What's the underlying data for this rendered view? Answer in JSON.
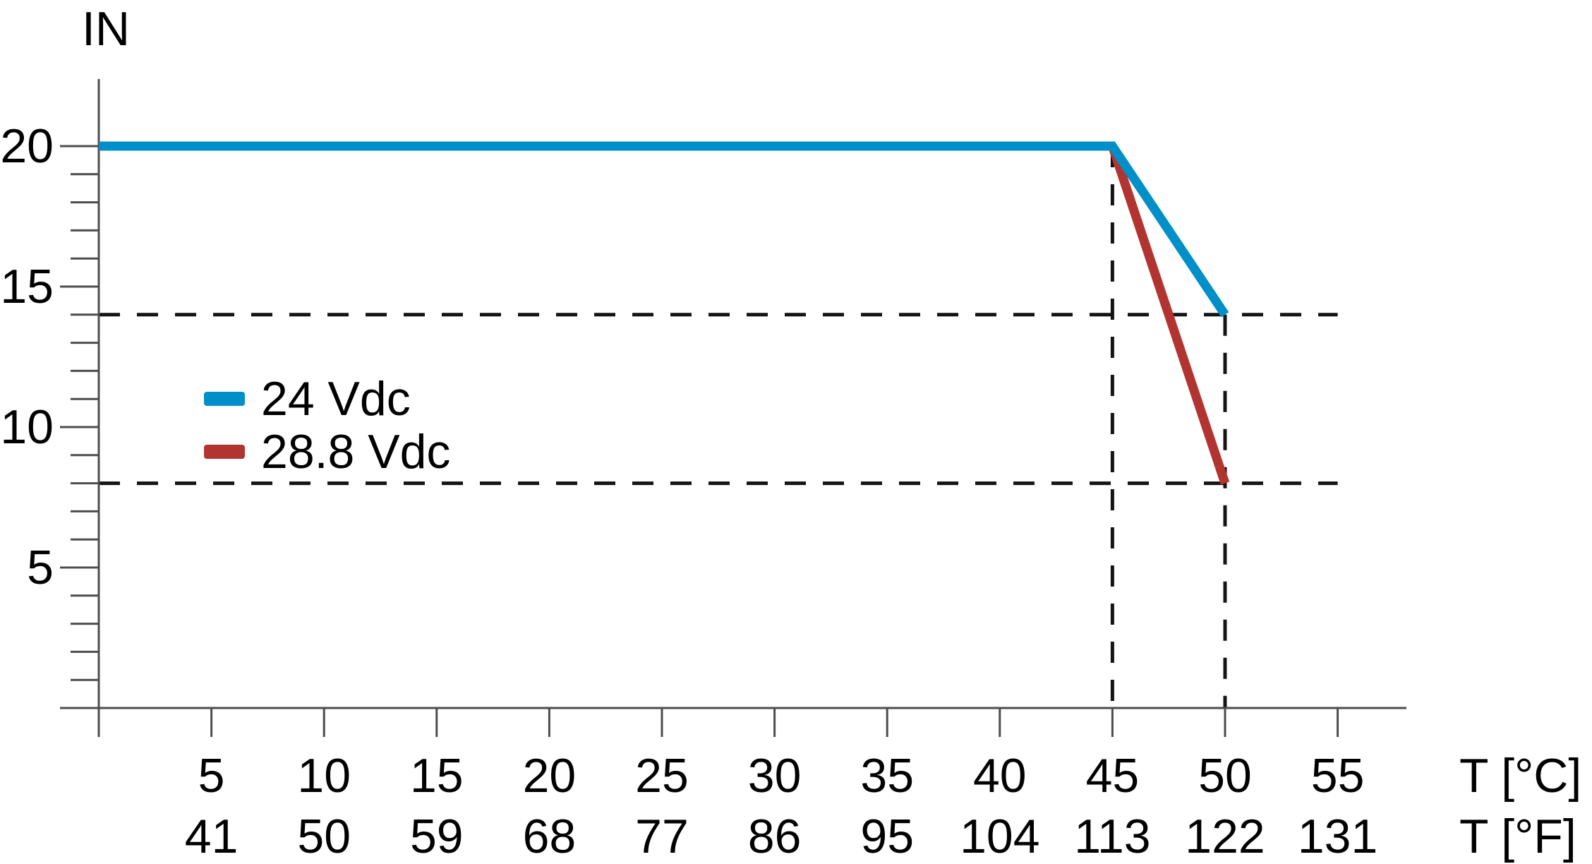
{
  "chart_data": {
    "type": "line",
    "title": "",
    "y_axis_label": "IN",
    "xlim": [
      0,
      58
    ],
    "ylim": [
      0,
      22.4
    ],
    "grid": "off",
    "legend_position": "inside-left-middle",
    "y_ticks_major": [
      20,
      15,
      10,
      5
    ],
    "y_minor_tick_range": [
      1,
      20
    ],
    "y_minor_tick_step": 1,
    "x_axis_rows": [
      {
        "unit": "T [°C]",
        "tick_values": [
          5,
          10,
          15,
          20,
          25,
          30,
          35,
          40,
          45,
          50,
          55
        ],
        "tick_labels": [
          "5",
          "10",
          "15",
          "20",
          "25",
          "30",
          "35",
          "40",
          "45",
          "50",
          "55"
        ]
      },
      {
        "unit": "T [°F]",
        "tick_labels": [
          "41",
          "50",
          "59",
          "68",
          "77",
          "86",
          "95",
          "104",
          "113",
          "122",
          "131"
        ]
      }
    ],
    "series": [
      {
        "name": "24 Vdc",
        "color": "#008FC8",
        "points": [
          [
            0,
            20
          ],
          [
            45,
            20
          ],
          [
            50,
            14
          ]
        ]
      },
      {
        "name": "28.8 Vdc",
        "color": "#B23430",
        "points": [
          [
            45,
            20
          ],
          [
            50,
            8
          ]
        ]
      }
    ],
    "guides": {
      "dashed_horizontal": [
        {
          "y": 14,
          "x_from": 0,
          "x_to": 55
        },
        {
          "y": 8,
          "x_from": 0,
          "x_to": 55
        }
      ],
      "dashed_vertical": [
        {
          "x": 45,
          "y_from": 0,
          "y_to": 20
        },
        {
          "x": 50,
          "y_from": 0,
          "y_to": 14
        }
      ]
    },
    "annotated_points": [
      {
        "series": "24 Vdc",
        "x_c": 45,
        "x_f": 113,
        "y": 20
      },
      {
        "series": "24 Vdc",
        "x_c": 50,
        "x_f": 122,
        "y": 14
      },
      {
        "series": "28.8 Vdc",
        "x_c": 45,
        "x_f": 113,
        "y": 20
      },
      {
        "series": "28.8 Vdc",
        "x_c": 50,
        "x_f": 122,
        "y": 8
      }
    ],
    "text_color": "#000000",
    "axis_color": "#4D4D50",
    "dash_color": "#141414"
  }
}
